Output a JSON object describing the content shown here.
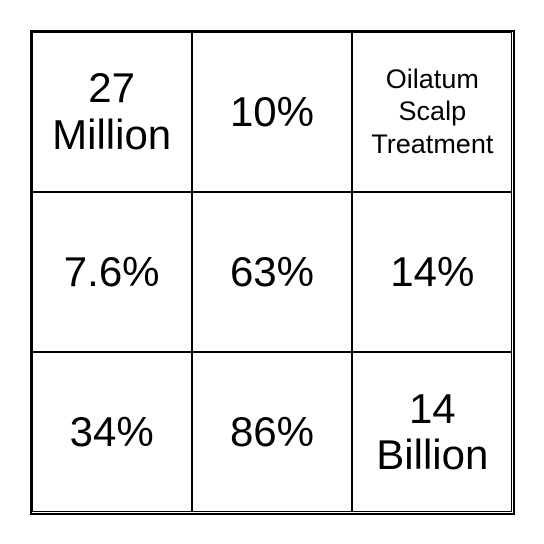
{
  "grid": {
    "type": "table",
    "rows": 3,
    "cols": 3,
    "border_color": "#000000",
    "background_color": "#ffffff",
    "text_color": "#000000",
    "cell_font_size_default": 42,
    "cell_font_size_small": 27,
    "cells": [
      {
        "text": "27 Million",
        "size": "default"
      },
      {
        "text": "10%",
        "size": "default"
      },
      {
        "text": "Oilatum Scalp Treatment",
        "size": "small"
      },
      {
        "text": "7.6%",
        "size": "default"
      },
      {
        "text": "63%",
        "size": "default"
      },
      {
        "text": "14%",
        "size": "default"
      },
      {
        "text": "34%",
        "size": "default"
      },
      {
        "text": "86%",
        "size": "default"
      },
      {
        "text": "14 Billion",
        "size": "default"
      }
    ]
  }
}
